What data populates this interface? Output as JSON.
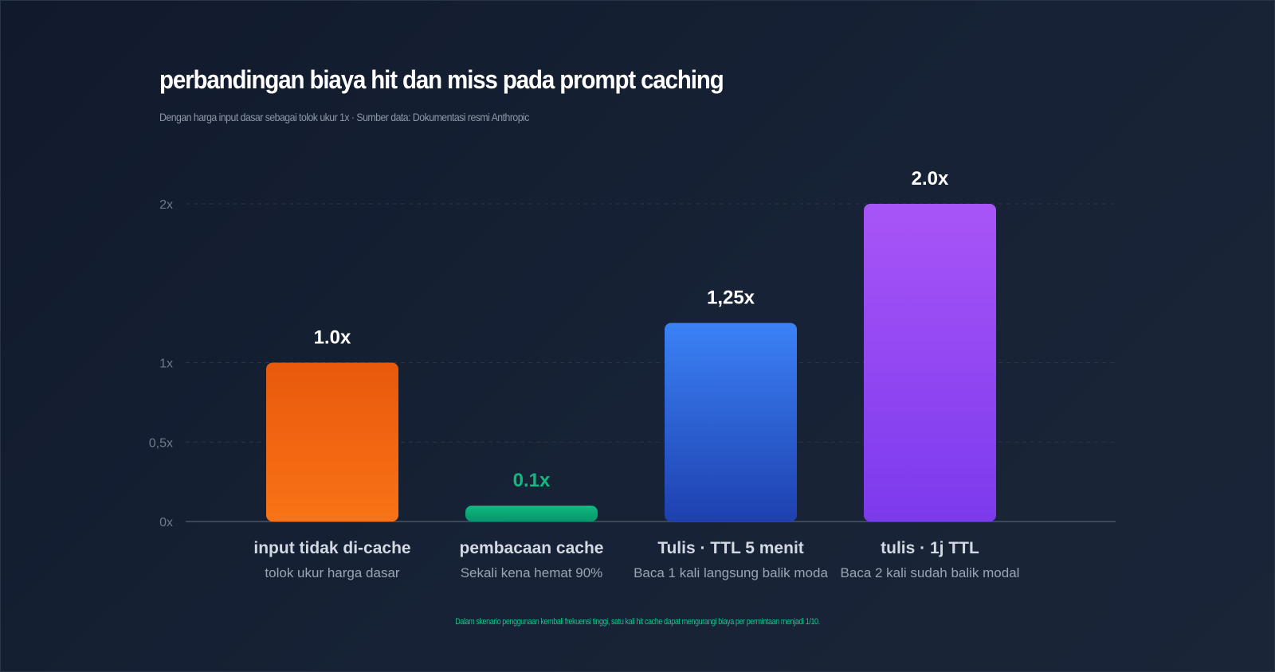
{
  "chart_data": {
    "type": "bar",
    "title": "perbandingan biaya hit dan miss pada prompt caching",
    "subtitle": "Dengan harga input dasar sebagai tolok ukur 1x · Sumber data: Dokumentasi resmi Anthropic",
    "categories": [
      "input tidak di-cache",
      "pembacaan cache",
      "Tulis · TTL 5 menit",
      "tulis · 1j TTL"
    ],
    "notes": [
      "tolok ukur harga dasar",
      "Sekali kena hemat 90%",
      "Baca 1 kali langsung balik moda",
      "Baca 2 kali sudah balik modal"
    ],
    "values": [
      1.0,
      0.1,
      1.25,
      2.0
    ],
    "value_labels": [
      "1.0x",
      "0.1x",
      "1,25x",
      "2.0x"
    ],
    "ylim": [
      0,
      2
    ],
    "yticks": [
      {
        "value": 0,
        "label": "0x"
      },
      {
        "value": 0.5,
        "label": "0,5x"
      },
      {
        "value": 1,
        "label": "1x"
      },
      {
        "value": 2,
        "label": "2x"
      }
    ],
    "grid": true,
    "colors": [
      {
        "top": "#e8590c",
        "bottom": "#f97316",
        "label": "#ffffff"
      },
      {
        "top": "#10b981",
        "bottom": "#059669",
        "label": "#10b981"
      },
      {
        "top": "#3b82f6",
        "bottom": "#1e40af",
        "label": "#ffffff"
      },
      {
        "top": "#a855f7",
        "bottom": "#7c3aed",
        "label": "#ffffff"
      }
    ]
  },
  "footnote": "Dalam skenario penggunaan kembali frekuensi tinggi, satu kali hit cache dapat mengurangi biaya per permintaan menjadi 1/10."
}
